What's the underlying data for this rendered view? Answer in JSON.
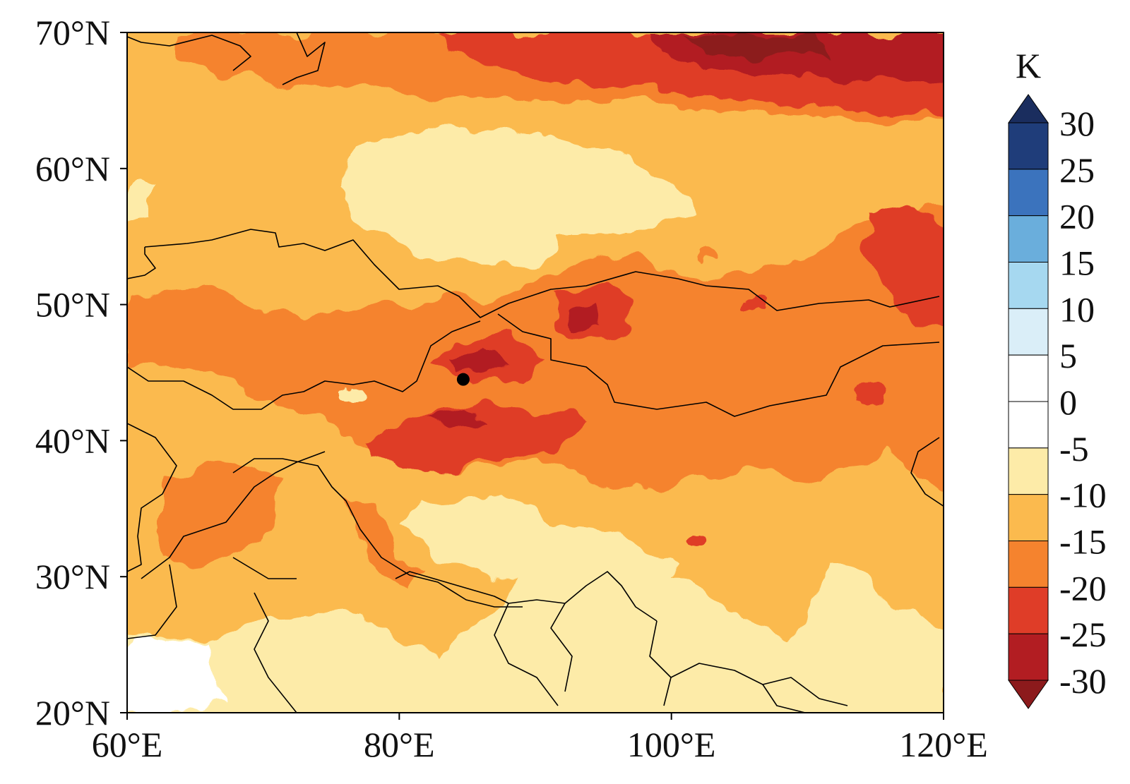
{
  "map": {
    "lon_range": [
      60,
      120
    ],
    "lat_range": [
      20,
      70
    ],
    "x_ticks": [
      {
        "value": 60,
        "label": "60°E"
      },
      {
        "value": 80,
        "label": "80°E"
      },
      {
        "value": 100,
        "label": "100°E"
      },
      {
        "value": 120,
        "label": "120°E"
      }
    ],
    "y_ticks": [
      {
        "value": 20,
        "label": "20°N"
      },
      {
        "value": 30,
        "label": "30°N"
      },
      {
        "value": 40,
        "label": "40°N"
      },
      {
        "value": 50,
        "label": "50°N"
      },
      {
        "value": 60,
        "label": "60°N"
      },
      {
        "value": 70,
        "label": "70°N"
      }
    ],
    "marker": {
      "lon": 84.7,
      "lat": 44.5,
      "color": "#000000"
    },
    "field_note": "temperature anomaly shaded contours, mostly -10 to -30 K"
  },
  "colorbar": {
    "unit": "K",
    "labels": [
      "30",
      "25",
      "20",
      "15",
      "10",
      "5",
      "0",
      "-5",
      "-10",
      "-15",
      "-20",
      "-25",
      "-30"
    ],
    "bins": [
      {
        "from": 25,
        "to": 30,
        "color": "#1f3d7a"
      },
      {
        "from": 20,
        "to": 25,
        "color": "#3b73bd"
      },
      {
        "from": 15,
        "to": 20,
        "color": "#6aaedc"
      },
      {
        "from": 10,
        "to": 15,
        "color": "#a6d8f0"
      },
      {
        "from": 5,
        "to": 10,
        "color": "#daeef8"
      },
      {
        "from": 0,
        "to": 5,
        "color": "#ffffff"
      },
      {
        "from": -5,
        "to": 0,
        "color": "#ffffff"
      },
      {
        "from": -10,
        "to": -5,
        "color": "#fdeba8"
      },
      {
        "from": -15,
        "to": -10,
        "color": "#fbba4e"
      },
      {
        "from": -20,
        "to": -15,
        "color": "#f5832e"
      },
      {
        "from": -25,
        "to": -20,
        "color": "#df3d28"
      },
      {
        "from": -30,
        "to": -25,
        "color": "#b21d22"
      }
    ],
    "extend_top_color": "#1a2d5e",
    "extend_bottom_color": "#8c1a1c"
  }
}
